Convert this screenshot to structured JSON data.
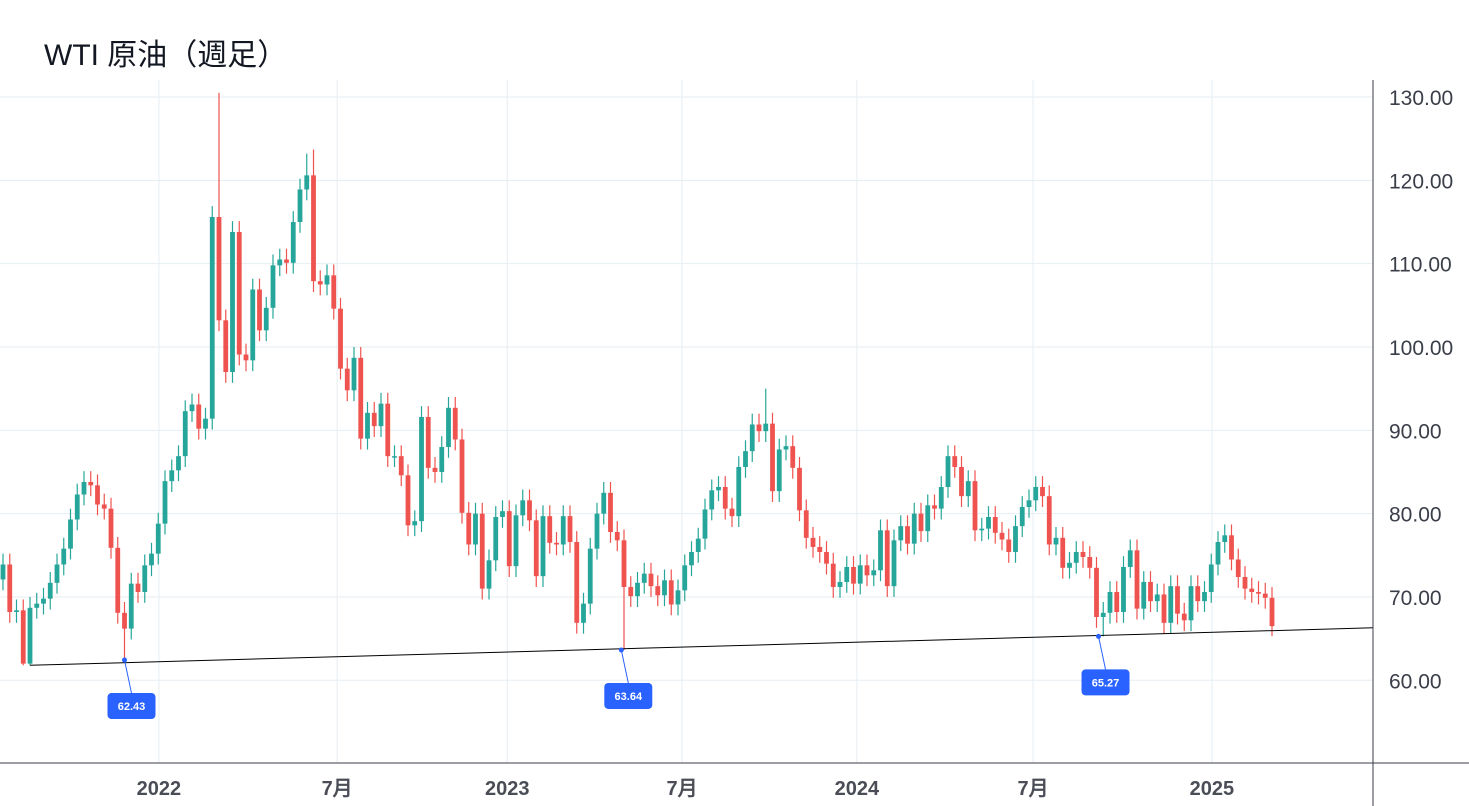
{
  "chart_data": {
    "type": "candlestick",
    "title": "WTI 原油（週足）",
    "xlabel": "",
    "ylabel": "",
    "ylim": [
      50,
      132
    ],
    "grid": true,
    "colors": {
      "up": "#26a69a",
      "down": "#ef5350",
      "annotation": "#2962ff",
      "trendline": "#000000",
      "grid": "#e6eef2"
    },
    "y_ticks": [
      "130.00",
      "120.00",
      "110.00",
      "100.00",
      "90.00",
      "80.00",
      "70.00",
      "60.00"
    ],
    "y_tick_values": [
      130,
      120,
      110,
      100,
      90,
      80,
      70,
      60
    ],
    "x_ticks": [
      {
        "label": "2022",
        "week_index": 23.1
      },
      {
        "label": "7月",
        "week_index": 49.5
      },
      {
        "label": "2023",
        "week_index": 74.7
      },
      {
        "label": "7月",
        "week_index": 100.6
      },
      {
        "label": "2024",
        "week_index": 126.5
      },
      {
        "label": "7月",
        "week_index": 152.6
      },
      {
        "label": "2025",
        "week_index": 179.1
      }
    ],
    "x_range_weeks": [
      -0.5,
      203
    ],
    "first_open": 72.1,
    "closes": [
      73.9,
      68.2,
      68.4,
      62.0,
      68.7,
      69.2,
      69.8,
      71.7,
      73.9,
      75.8,
      79.3,
      82.3,
      83.8,
      83.4,
      81.1,
      80.6,
      75.9,
      68.1,
      66.2,
      71.6,
      70.6,
      73.8,
      75.2,
      78.8,
      83.9,
      85.2,
      86.9,
      92.3,
      93.1,
      90.2,
      91.4,
      115.6,
      103.2,
      97.0,
      113.8,
      99.1,
      98.4,
      106.9,
      102.0,
      104.7,
      109.8,
      110.5,
      110.1,
      115.0,
      118.9,
      120.6,
      107.9,
      107.5,
      108.6,
      104.6,
      97.4,
      94.8,
      98.7,
      89.0,
      92.1,
      90.5,
      93.2,
      86.9,
      86.9,
      84.6,
      78.6,
      79.1,
      91.6,
      85.5,
      85.0,
      88.0,
      92.7,
      88.9,
      80.1,
      76.3,
      80.0,
      71.0,
      74.4,
      79.6,
      80.3,
      73.7,
      79.8,
      81.6,
      79.2,
      72.5,
      79.7,
      76.5,
      76.3,
      79.7,
      76.6,
      66.9,
      69.2,
      75.8,
      80.0,
      82.5,
      77.8,
      76.8,
      71.2,
      70.1,
      71.7,
      72.8,
      71.3,
      70.2,
      72.0,
      69.1,
      70.8,
      73.8,
      75.4,
      77.0,
      80.5,
      82.8,
      83.2,
      80.6,
      79.7,
      85.6,
      87.5,
      90.7,
      89.9,
      90.8,
      82.7,
      87.7,
      88.1,
      85.5,
      80.4,
      77.1,
      76.0,
      75.4,
      74.0,
      71.2,
      71.8,
      73.6,
      71.6,
      73.8,
      72.6,
      73.2,
      78.0,
      71.3,
      76.8,
      78.5,
      76.4,
      80.0,
      77.9,
      81.0,
      80.6,
      83.2,
      86.9,
      85.6,
      82.1,
      83.9,
      78.0,
      78.2,
      79.6,
      77.7,
      76.9,
      75.4,
      78.5,
      80.8,
      81.6,
      83.2,
      82.1,
      76.3,
      77.1,
      73.5,
      74.1,
      75.4,
      74.8,
      73.5,
      67.6,
      68.1,
      70.6,
      68.2,
      73.6,
      75.6,
      68.6,
      71.8,
      69.5,
      70.3,
      66.9,
      71.3,
      68.0,
      67.2,
      71.3,
      69.5,
      70.6,
      73.9,
      76.6,
      77.4,
      74.5,
      72.4,
      71.0,
      70.6,
      70.4,
      69.9,
      66.5
    ],
    "wick_overrides": [
      {
        "index": 3,
        "low": 61.8
      },
      {
        "index": 4,
        "low": 61.8
      },
      {
        "index": 18,
        "low": 62.43
      },
      {
        "index": 32,
        "high": 130.5
      },
      {
        "index": 45,
        "high": 123.2
      },
      {
        "index": 46,
        "high": 123.7
      },
      {
        "index": 92,
        "low": 63.64
      },
      {
        "index": 113,
        "high": 95.0
      },
      {
        "index": 163,
        "low": 65.27
      },
      {
        "index": 188,
        "low": 65.3
      }
    ],
    "default_wick": 1.3,
    "trendline": {
      "start": {
        "week_index": 4,
        "price": 61.8
      },
      "end": {
        "week_index": 203,
        "price": 66.3
      }
    },
    "annotations": [
      {
        "label": "62.43",
        "week_index": 18,
        "price": 62.43
      },
      {
        "label": "63.64",
        "week_index": 91.6,
        "price": 63.64
      },
      {
        "label": "65.27",
        "week_index": 162.3,
        "price": 65.27
      }
    ]
  }
}
